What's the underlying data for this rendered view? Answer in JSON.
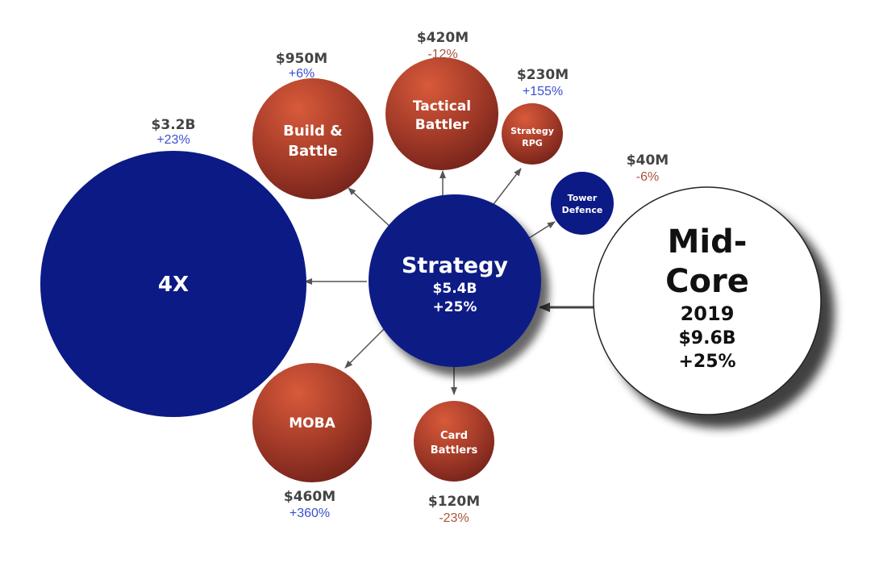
{
  "colors": {
    "navy": "#0c1a85",
    "growth": "#3a4fd0",
    "decline": "#a8553d",
    "value": "#444444",
    "arrow": "#555555",
    "hub_outline": "#222222"
  },
  "hub": {
    "line1": "Mid-",
    "line2": "Core",
    "year": "2019",
    "value": "$9.6B",
    "change": "+25%"
  },
  "center": {
    "label": "Strategy",
    "value": "$5.4B",
    "change": "+25%"
  },
  "nodes": [
    {
      "id": "4x",
      "lines": [
        "4X"
      ],
      "value": "$3.2B",
      "change": "+23%",
      "trend": "up",
      "fill": "navy"
    },
    {
      "id": "build-battle",
      "lines": [
        "Build &",
        "Battle"
      ],
      "value": "$950M",
      "change": "+6%",
      "trend": "up",
      "fill": "red"
    },
    {
      "id": "tactical-battler",
      "lines": [
        "Tactical",
        "Battler"
      ],
      "value": "$420M",
      "change": "-12%",
      "trend": "down",
      "fill": "red"
    },
    {
      "id": "strategy-rpg",
      "lines": [
        "Strategy",
        "RPG"
      ],
      "value": "$230M",
      "change": "+155%",
      "trend": "up",
      "fill": "red"
    },
    {
      "id": "tower-defence",
      "lines": [
        "Tower",
        "Defence"
      ],
      "value": "$40M",
      "change": "-6%",
      "trend": "down",
      "fill": "navy"
    },
    {
      "id": "moba",
      "lines": [
        "MOBA"
      ],
      "value": "$460M",
      "change": "+360%",
      "trend": "up",
      "fill": "red"
    },
    {
      "id": "card-battlers",
      "lines": [
        "Card",
        "Battlers"
      ],
      "value": "$120M",
      "change": "-23%",
      "trend": "down",
      "fill": "red"
    }
  ]
}
